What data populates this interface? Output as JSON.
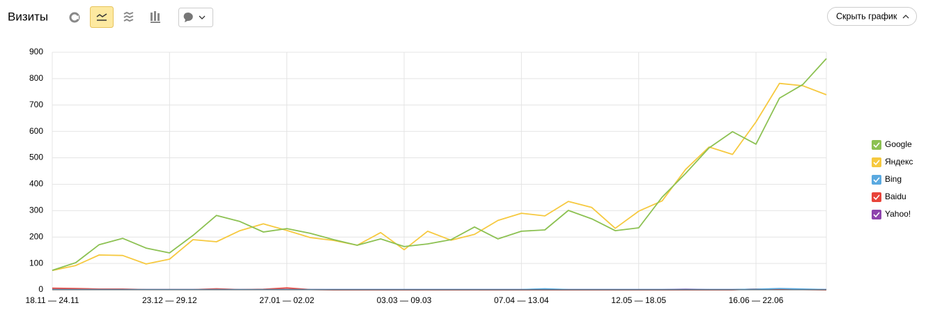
{
  "toolbar": {
    "title": "Визиты",
    "hide_button": "Скрыть график"
  },
  "chart_data": {
    "type": "line",
    "categories": [
      "18.11 — 24.11",
      null,
      null,
      null,
      null,
      "23.12 — 29.12",
      null,
      null,
      null,
      null,
      "27.01 — 02.02",
      null,
      null,
      null,
      null,
      "03.03 — 09.03",
      null,
      null,
      null,
      null,
      "07.04 — 13.04",
      null,
      null,
      null,
      null,
      "12.05 — 18.05",
      null,
      null,
      null,
      null,
      "16.06 — 22.06",
      null,
      null,
      null
    ],
    "series": [
      {
        "name": "Google",
        "color": "#8cc152",
        "values": [
          74,
          103,
          171,
          195,
          158,
          140,
          206,
          282,
          259,
          219,
          232,
          214,
          190,
          169,
          193,
          164,
          174,
          190,
          238,
          193,
          222,
          227,
          301,
          269,
          224,
          235,
          351,
          441,
          538,
          599,
          552,
          726,
          778,
          876
        ]
      },
      {
        "name": "Яндекс",
        "color": "#f6c93f",
        "values": [
          73,
          92,
          132,
          130,
          98,
          116,
          190,
          182,
          224,
          250,
          225,
          198,
          187,
          169,
          217,
          152,
          222,
          188,
          210,
          263,
          290,
          280,
          335,
          312,
          233,
          298,
          337,
          456,
          541,
          513,
          636,
          782,
          773,
          739
        ]
      },
      {
        "name": "Bing",
        "color": "#5aa9e0",
        "values": [
          1,
          1,
          1,
          1,
          1,
          1,
          1,
          1,
          1,
          1,
          1,
          1,
          1,
          1,
          1,
          1,
          1,
          1,
          1,
          1,
          1,
          4,
          1,
          1,
          1,
          1,
          1,
          1,
          1,
          1,
          2,
          5,
          3,
          1
        ]
      },
      {
        "name": "Baidu",
        "color": "#e8443a",
        "values": [
          6,
          5,
          3,
          3,
          1,
          1,
          1,
          4,
          1,
          2,
          7,
          1,
          0,
          0,
          0,
          0,
          0,
          0,
          0,
          0,
          0,
          0,
          0,
          0,
          0,
          0,
          0,
          0,
          0,
          0,
          3,
          2,
          1,
          0
        ]
      },
      {
        "name": "Yahoo!",
        "color": "#8e44ad",
        "values": [
          1,
          1,
          1,
          1,
          1,
          1,
          1,
          1,
          1,
          1,
          1,
          1,
          1,
          1,
          1,
          1,
          1,
          1,
          1,
          1,
          1,
          1,
          1,
          1,
          1,
          1,
          1,
          2,
          1,
          1,
          2,
          2,
          1,
          1
        ]
      }
    ],
    "ylim": [
      0,
      900
    ],
    "yticks": [
      0,
      100,
      200,
      300,
      400,
      500,
      600,
      700,
      800,
      900
    ],
    "grid": true,
    "legend": "right"
  }
}
